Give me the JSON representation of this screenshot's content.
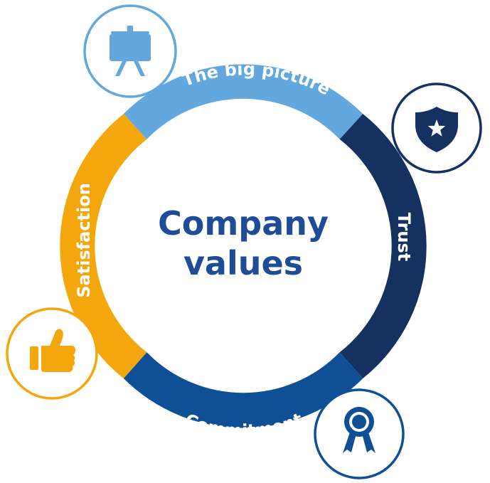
{
  "center": {
    "line1": "Company",
    "line2": "values"
  },
  "segments": [
    {
      "key": "big-picture",
      "label": "The big picture",
      "color": "#62a8de",
      "icon": "easel-icon"
    },
    {
      "key": "trust",
      "label": "Trust",
      "color": "#14315f",
      "icon": "shield-star-icon"
    },
    {
      "key": "commitment",
      "label": "Commitment",
      "color": "#0f4f95",
      "icon": "award-ribbon-icon"
    },
    {
      "key": "satisfaction",
      "label": "Satisfaction",
      "color": "#f3a70d",
      "icon": "thumbs-up-icon"
    }
  ],
  "colors": {
    "center_text": "#1e4c96",
    "trust_icon": "#14315f",
    "commitment_icon": "#0f4f95",
    "satisfaction_icon": "#f3a70d",
    "big_picture_icon": "#62a8de"
  }
}
